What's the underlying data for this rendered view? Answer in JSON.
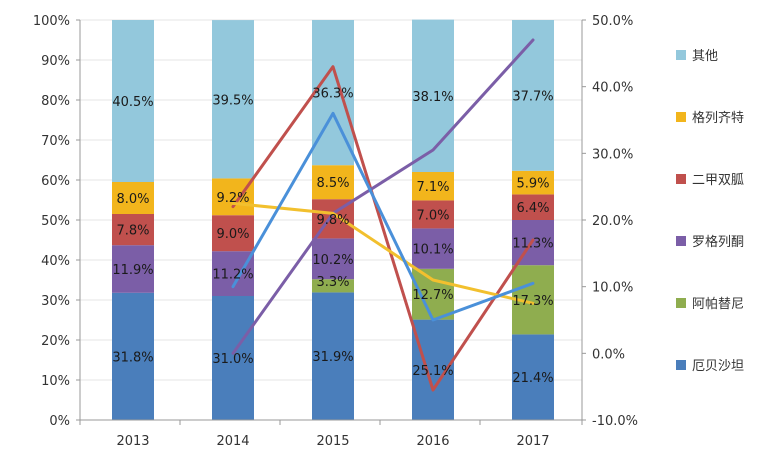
{
  "chart_data": {
    "type": "bar",
    "stacked": true,
    "percent_stacked": true,
    "categories": [
      "2013",
      "2014",
      "2015",
      "2016",
      "2017"
    ],
    "ylim": [
      0,
      100
    ],
    "y_ticks": [
      "0%",
      "10%",
      "20%",
      "30%",
      "40%",
      "50%",
      "60%",
      "70%",
      "80%",
      "90%",
      "100%"
    ],
    "y2lim": [
      -10,
      50
    ],
    "y2_ticks": [
      "-10.0%",
      "0.0%",
      "10.0%",
      "20.0%",
      "30.0%",
      "40.0%",
      "50.0%"
    ],
    "series": [
      {
        "name": "厄贝沙坦",
        "color": "#4a7ebb",
        "values": [
          31.8,
          31.0,
          31.9,
          25.1,
          21.4
        ],
        "labels": [
          "31.8%",
          "31.0%",
          "31.9%",
          "25.1%",
          "21.4%"
        ]
      },
      {
        "name": "阿帕替尼",
        "color": "#8fad4f",
        "values": [
          0,
          0,
          3.3,
          12.7,
          17.3
        ],
        "labels": [
          "",
          "",
          "3.3%",
          "12.7%",
          "17.3%"
        ]
      },
      {
        "name": "罗格列酮",
        "color": "#7b5ea7",
        "values": [
          11.9,
          11.2,
          10.2,
          10.1,
          11.3
        ],
        "labels": [
          "11.9%",
          "11.2%",
          "10.2%",
          "10.1%",
          "11.3%"
        ]
      },
      {
        "name": "二甲双胍",
        "color": "#c0504d",
        "values": [
          7.8,
          9.0,
          9.8,
          7.0,
          6.4
        ],
        "labels": [
          "7.8%",
          "9.0%",
          "9.8%",
          "7.0%",
          "6.4%"
        ]
      },
      {
        "name": "格列齐特",
        "color": "#f2b51c",
        "values": [
          8.0,
          9.2,
          8.5,
          7.1,
          5.9
        ],
        "labels": [
          "8.0%",
          "9.2%",
          "8.5%",
          "7.1%",
          "5.9%"
        ]
      },
      {
        "name": "其他",
        "color": "#93c8dc",
        "values": [
          40.5,
          39.5,
          36.3,
          38.1,
          37.7
        ],
        "labels": [
          "40.5%",
          "39.5%",
          "36.3%",
          "38.1%",
          "37.7%"
        ]
      }
    ],
    "growth_lines": [
      {
        "color": "#c0504d",
        "start_index": 1,
        "values": [
          22.0,
          43.0,
          -5.5,
          17.0
        ]
      },
      {
        "color": "#7b5ea7",
        "start_index": 1,
        "values": [
          0.0,
          21.0,
          30.5,
          47.0
        ]
      },
      {
        "color": "#f2c02e",
        "start_index": 1,
        "values": [
          22.5,
          21.0,
          11.0,
          7.5
        ]
      },
      {
        "color": "#4a90d9",
        "start_index": 1,
        "values": [
          10.0,
          36.0,
          5.0,
          10.5
        ]
      }
    ],
    "legend_position": "right"
  }
}
